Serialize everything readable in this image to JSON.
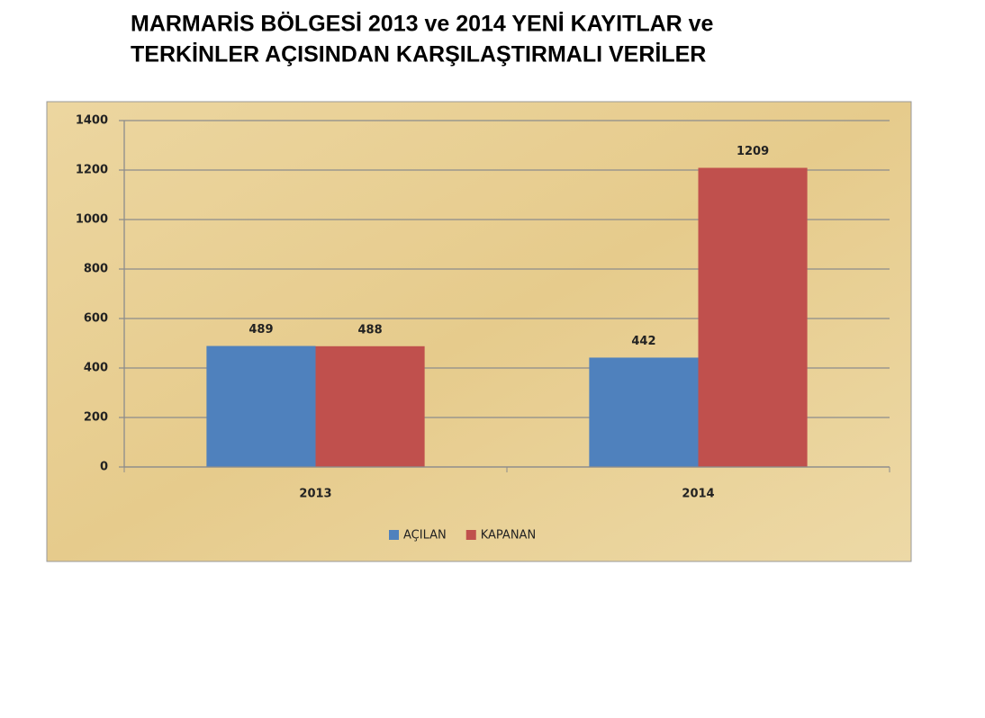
{
  "chart_data": {
    "type": "bar",
    "title": [
      "MARMARİS BÖLGESİ 2013 ve 2014 YENİ KAYITLAR ve",
      "TERKİNLER AÇISINDAN KARŞILAŞTIRMALI VERİLER"
    ],
    "categories": [
      "2013",
      "2014"
    ],
    "series": [
      {
        "name": "AÇILAN",
        "color": "#4f81bd",
        "values": [
          489,
          442
        ]
      },
      {
        "name": "KAPANAN",
        "color": "#c0504d",
        "values": [
          488,
          1209
        ]
      }
    ],
    "ylim": [
      0,
      1400
    ],
    "yticks": [
      0,
      200,
      400,
      600,
      800,
      1000,
      1200,
      1400
    ],
    "grid": true,
    "legend": "bottom"
  }
}
